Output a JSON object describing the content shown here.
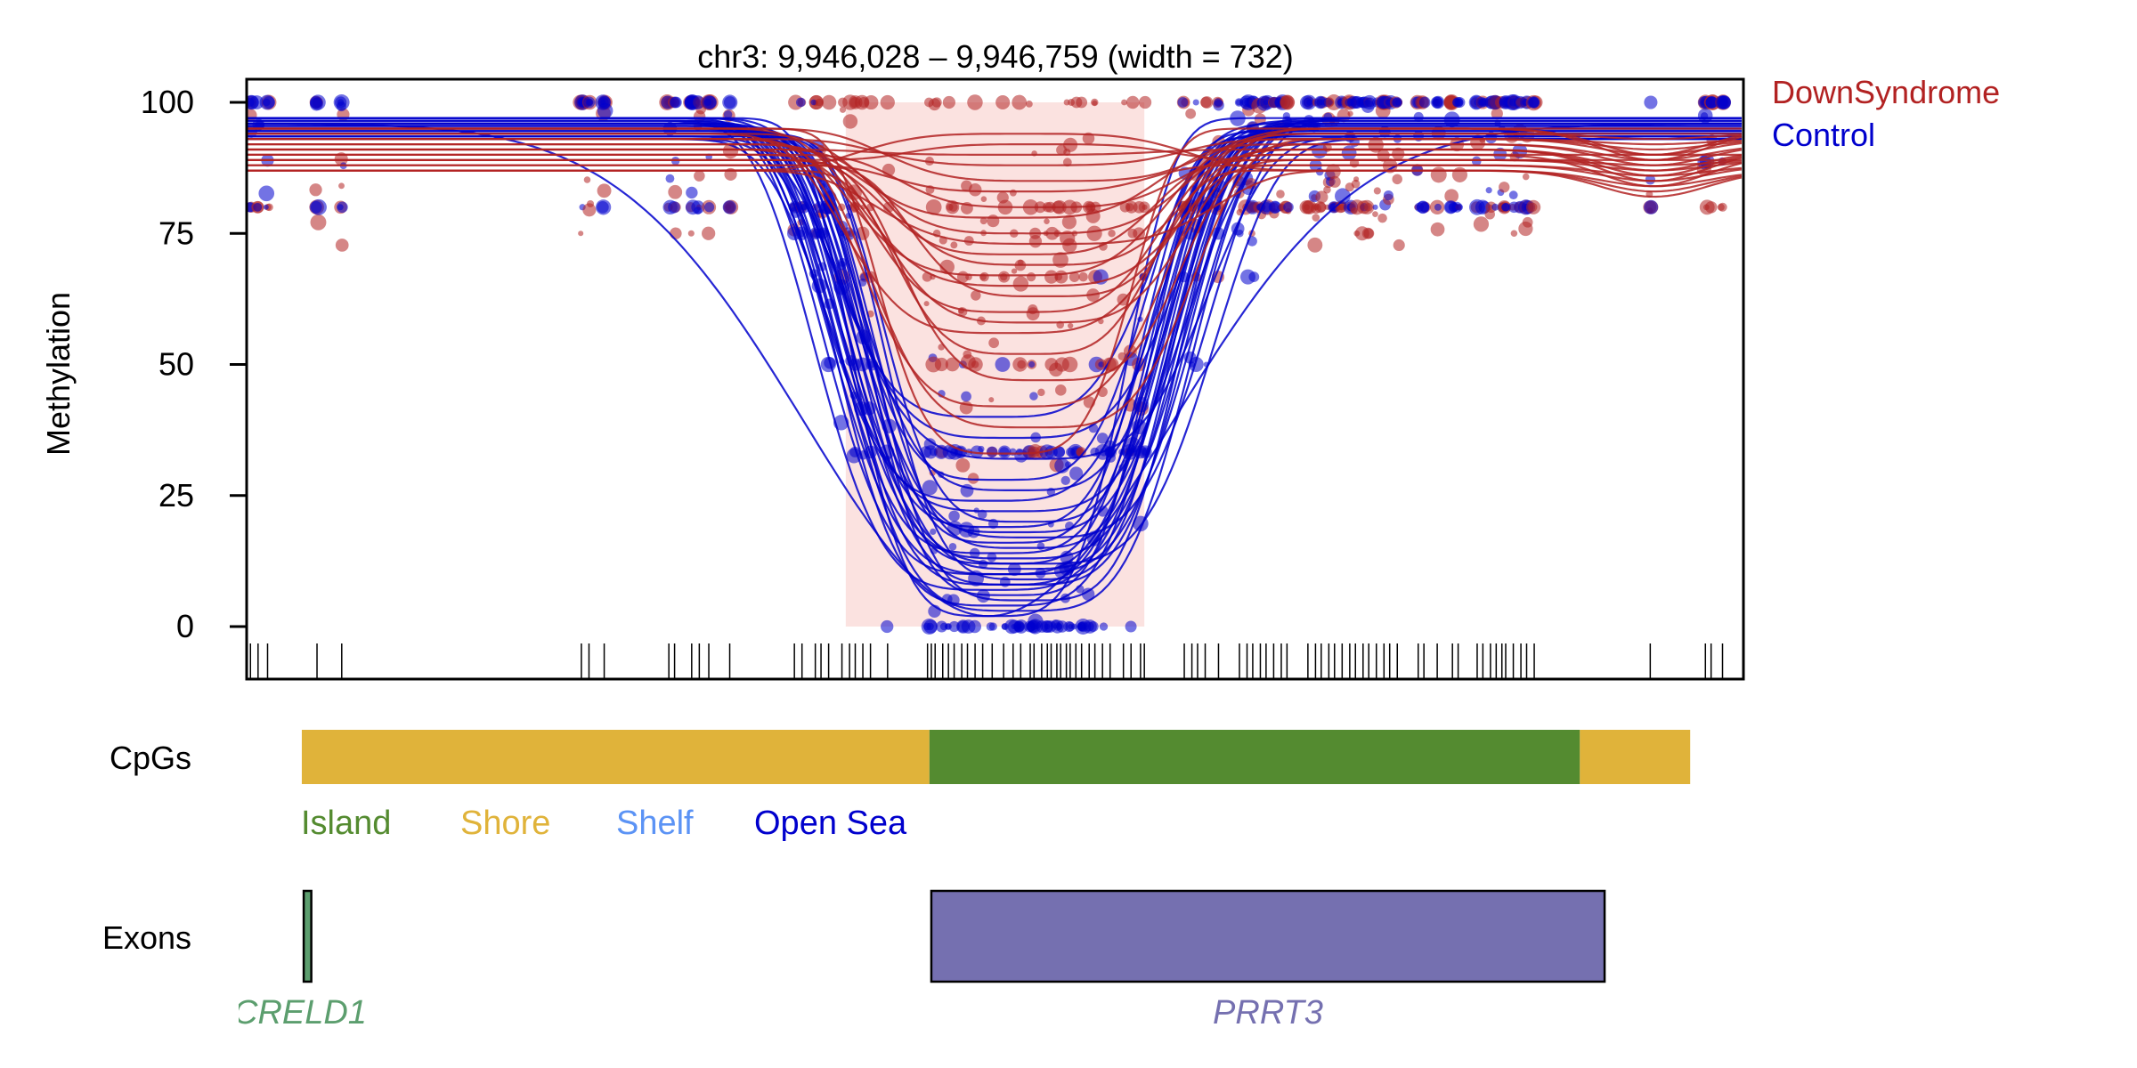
{
  "chart_data": {
    "type": "line",
    "title": "chr3: 9,946,028 – 9,946,759 (width = 732)",
    "ylabel": "Methylation",
    "xlabel": "",
    "xlim": [
      9946000,
      9946787
    ],
    "ylim": [
      -10,
      104
    ],
    "yticks": [
      "0",
      "25",
      "50",
      "75",
      "100"
    ],
    "ytick_values": [
      0,
      25,
      50,
      75,
      100
    ],
    "legend": {
      "placement": "top-right-outside",
      "entries": [
        {
          "name": "DownSyndrome",
          "color": "#B22222"
        },
        {
          "name": "Control",
          "color": "#0000CD"
        }
      ]
    },
    "dmr_region": {
      "start": 9946315,
      "end": 9946472,
      "color": "#FADBD8"
    },
    "position_base": 9946000,
    "cpg_positions_offset": [
      2,
      6,
      11,
      37,
      50,
      176,
      180,
      188,
      222,
      225,
      234,
      238,
      243,
      254,
      288,
      292,
      299,
      302,
      306,
      313,
      317,
      320,
      324,
      328,
      337,
      358,
      360,
      362,
      366,
      369,
      372,
      376,
      379,
      383,
      387,
      392,
      398,
      403,
      407,
      412,
      414,
      418,
      421,
      423,
      426,
      428,
      431,
      433,
      436,
      439,
      443,
      446,
      450,
      454,
      461,
      465,
      470,
      472,
      493,
      497,
      500,
      504,
      511,
      522,
      526,
      529,
      533,
      536,
      540,
      544,
      547,
      558,
      562,
      565,
      569,
      572,
      576,
      580,
      583,
      587,
      590,
      594,
      598,
      601,
      605,
      616,
      619,
      626,
      634,
      637,
      647,
      650,
      654,
      657,
      660,
      662,
      666,
      670,
      673,
      677,
      738,
      767,
      770,
      776
    ],
    "series": [
      {
        "name": "DownSyndrome",
        "color": "#B22222",
        "dip_center_offset": 410,
        "dip_halfwidth": 85,
        "baseline": 95,
        "sample_minima": [
          33,
          38,
          42,
          47,
          52,
          56,
          58,
          60,
          63,
          65,
          67,
          69,
          71,
          73,
          75,
          78,
          80,
          83,
          85,
          88,
          90,
          92,
          94
        ]
      },
      {
        "name": "Control",
        "color": "#0000CD",
        "dip_center_offset": 402,
        "dip_halfwidth": 92,
        "baseline": 97,
        "sample_minima": [
          2,
          3,
          4,
          5,
          6,
          7,
          8,
          8,
          9,
          10,
          10,
          11,
          12,
          12,
          13,
          14,
          15,
          16,
          17,
          18,
          19,
          20,
          22,
          24,
          26,
          28,
          32,
          36,
          40,
          3
        ]
      }
    ]
  },
  "tracks": {
    "cpgs": {
      "label": "CpGs",
      "segments": [
        {
          "type": "Shore",
          "start": 9946029,
          "end": 9946359
        },
        {
          "type": "Island",
          "start": 9946359,
          "end": 9946701
        },
        {
          "type": "Shore",
          "start": 9946701,
          "end": 9946759
        }
      ],
      "legend": [
        {
          "name": "Island",
          "color": "#548B30"
        },
        {
          "name": "Shore",
          "color": "#E0B33A"
        },
        {
          "name": "Shelf",
          "color": "#5B93F5"
        },
        {
          "name": "Open Sea",
          "color": "#0000CD"
        }
      ]
    },
    "exons": {
      "label": "Exons",
      "genes": [
        {
          "name": "CRELD1",
          "start": 9946030,
          "end": 9946034,
          "color": "#5C9E6E"
        },
        {
          "name": "PRRT3",
          "start": 9946360,
          "end": 9946714,
          "color": "#7570B0"
        }
      ]
    }
  }
}
